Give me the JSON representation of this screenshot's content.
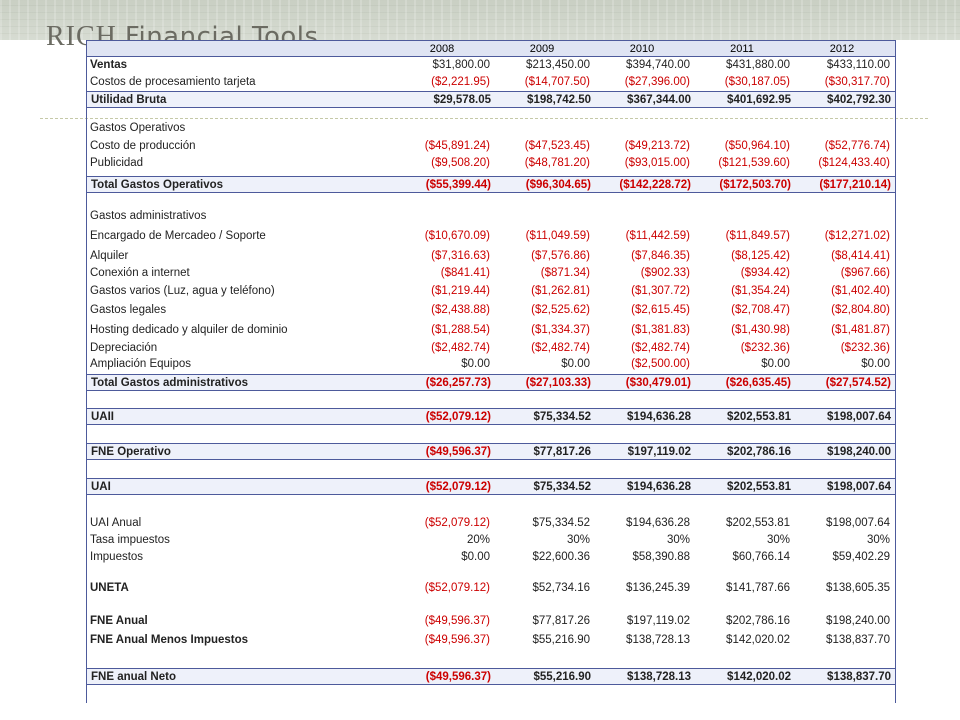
{
  "header": {
    "brand_rich": "RICH",
    "brand_tools": "Financial Tools"
  },
  "years": [
    "2008",
    "2009",
    "2010",
    "2011",
    "2012"
  ],
  "rows": [
    {
      "label": "Ventas",
      "values": [
        "$31,800.00",
        "$213,450.00",
        "$394,740.00",
        "$431,880.00",
        "$433,110.00"
      ],
      "style": "bold-label"
    },
    {
      "label": "Costos de procesamiento tarjeta",
      "values": [
        "($2,221.95)",
        "($14,707.50)",
        "($27,396.00)",
        "($30,187.05)",
        "($30,317.70)"
      ]
    },
    {
      "label": "Utilidad Bruta",
      "values": [
        "$29,578.05",
        "$198,742.50",
        "$367,344.00",
        "$401,692.95",
        "$402,792.30"
      ],
      "style": "boxed"
    },
    {
      "label": "Gastos Operativos",
      "values": [
        "",
        "",
        "",
        "",
        ""
      ]
    },
    {
      "label": "Costo de producción",
      "values": [
        "($45,891.24)",
        "($47,523.45)",
        "($49,213.72)",
        "($50,964.10)",
        "($52,776.74)"
      ]
    },
    {
      "label": "Publicidad",
      "values": [
        "($9,508.20)",
        "($48,781.20)",
        "($93,015.00)",
        "($121,539.60)",
        "($124,433.40)"
      ]
    },
    {
      "label": "Total Gastos Operativos",
      "values": [
        "($55,399.44)",
        "($96,304.65)",
        "($142,228.72)",
        "($172,503.70)",
        "($177,210.14)"
      ],
      "style": "boxed"
    },
    {
      "label": "Gastos administrativos",
      "values": [
        "",
        "",
        "",
        "",
        ""
      ]
    },
    {
      "label": "Encargado de Mercadeo / Soporte",
      "values": [
        "($10,670.09)",
        "($11,049.59)",
        "($11,442.59)",
        "($11,849.57)",
        "($12,271.02)"
      ]
    },
    {
      "label": "Alquiler",
      "values": [
        "($7,316.63)",
        "($7,576.86)",
        "($7,846.35)",
        "($8,125.42)",
        "($8,414.41)"
      ]
    },
    {
      "label": "Conexión a internet",
      "values": [
        "($841.41)",
        "($871.34)",
        "($902.33)",
        "($934.42)",
        "($967.66)"
      ]
    },
    {
      "label": "Gastos varios (Luz, agua y teléfono)",
      "values": [
        "($1,219.44)",
        "($1,262.81)",
        "($1,307.72)",
        "($1,354.24)",
        "($1,402.40)"
      ]
    },
    {
      "label": "Gastos legales",
      "values": [
        "($2,438.88)",
        "($2,525.62)",
        "($2,615.45)",
        "($2,708.47)",
        "($2,804.80)"
      ]
    },
    {
      "label": "Hosting dedicado y alquiler de dominio",
      "values": [
        "($1,288.54)",
        "($1,334.37)",
        "($1,381.83)",
        "($1,430.98)",
        "($1,481.87)"
      ]
    },
    {
      "label": "Depreciación",
      "values": [
        "($2,482.74)",
        "($2,482.74)",
        "($2,482.74)",
        "($232.36)",
        "($232.36)"
      ]
    },
    {
      "label": "Ampliación Equipos",
      "values": [
        "$0.00",
        "$0.00",
        "($2,500.00)",
        "$0.00",
        "$0.00"
      ]
    },
    {
      "label": "Total Gastos administrativos",
      "values": [
        "($26,257.73)",
        "($27,103.33)",
        "($30,479.01)",
        "($26,635.45)",
        "($27,574.52)"
      ],
      "style": "boxed"
    },
    {
      "label": "UAII",
      "values": [
        "($52,079.12)",
        "$75,334.52",
        "$194,636.28",
        "$202,553.81",
        "$198,007.64"
      ],
      "style": "boxed"
    },
    {
      "label": "FNE Operativo",
      "values": [
        "($49,596.37)",
        "$77,817.26",
        "$197,119.02",
        "$202,786.16",
        "$198,240.00"
      ],
      "style": "boxed"
    },
    {
      "label": "UAI",
      "values": [
        "($52,079.12)",
        "$75,334.52",
        "$194,636.28",
        "$202,553.81",
        "$198,007.64"
      ],
      "style": "boxed"
    },
    {
      "label": "UAI Anual",
      "values": [
        "($52,079.12)",
        "$75,334.52",
        "$194,636.28",
        "$202,553.81",
        "$198,007.64"
      ]
    },
    {
      "label": "Tasa impuestos",
      "values": [
        "20%",
        "30%",
        "30%",
        "30%",
        "30%"
      ]
    },
    {
      "label": "Impuestos",
      "values": [
        "$0.00",
        "$22,600.36",
        "$58,390.88",
        "$60,766.14",
        "$59,402.29"
      ]
    },
    {
      "label": "UNETA",
      "values": [
        "($52,079.12)",
        "$52,734.16",
        "$136,245.39",
        "$141,787.66",
        "$138,605.35"
      ],
      "style": "bold-label"
    },
    {
      "label": "FNE Anual",
      "values": [
        "($49,596.37)",
        "$77,817.26",
        "$197,119.02",
        "$202,786.16",
        "$198,240.00"
      ],
      "style": "bold-label"
    },
    {
      "label": "FNE Anual Menos Impuestos",
      "values": [
        "($49,596.37)",
        "$55,216.90",
        "$138,728.13",
        "$142,020.02",
        "$138,837.70"
      ],
      "style": "bold-label"
    },
    {
      "label": "FNE anual Neto",
      "values": [
        "($49,596.37)",
        "$55,216.90",
        "$138,728.13",
        "$142,020.02",
        "$138,837.70"
      ],
      "style": "boxed"
    }
  ]
}
